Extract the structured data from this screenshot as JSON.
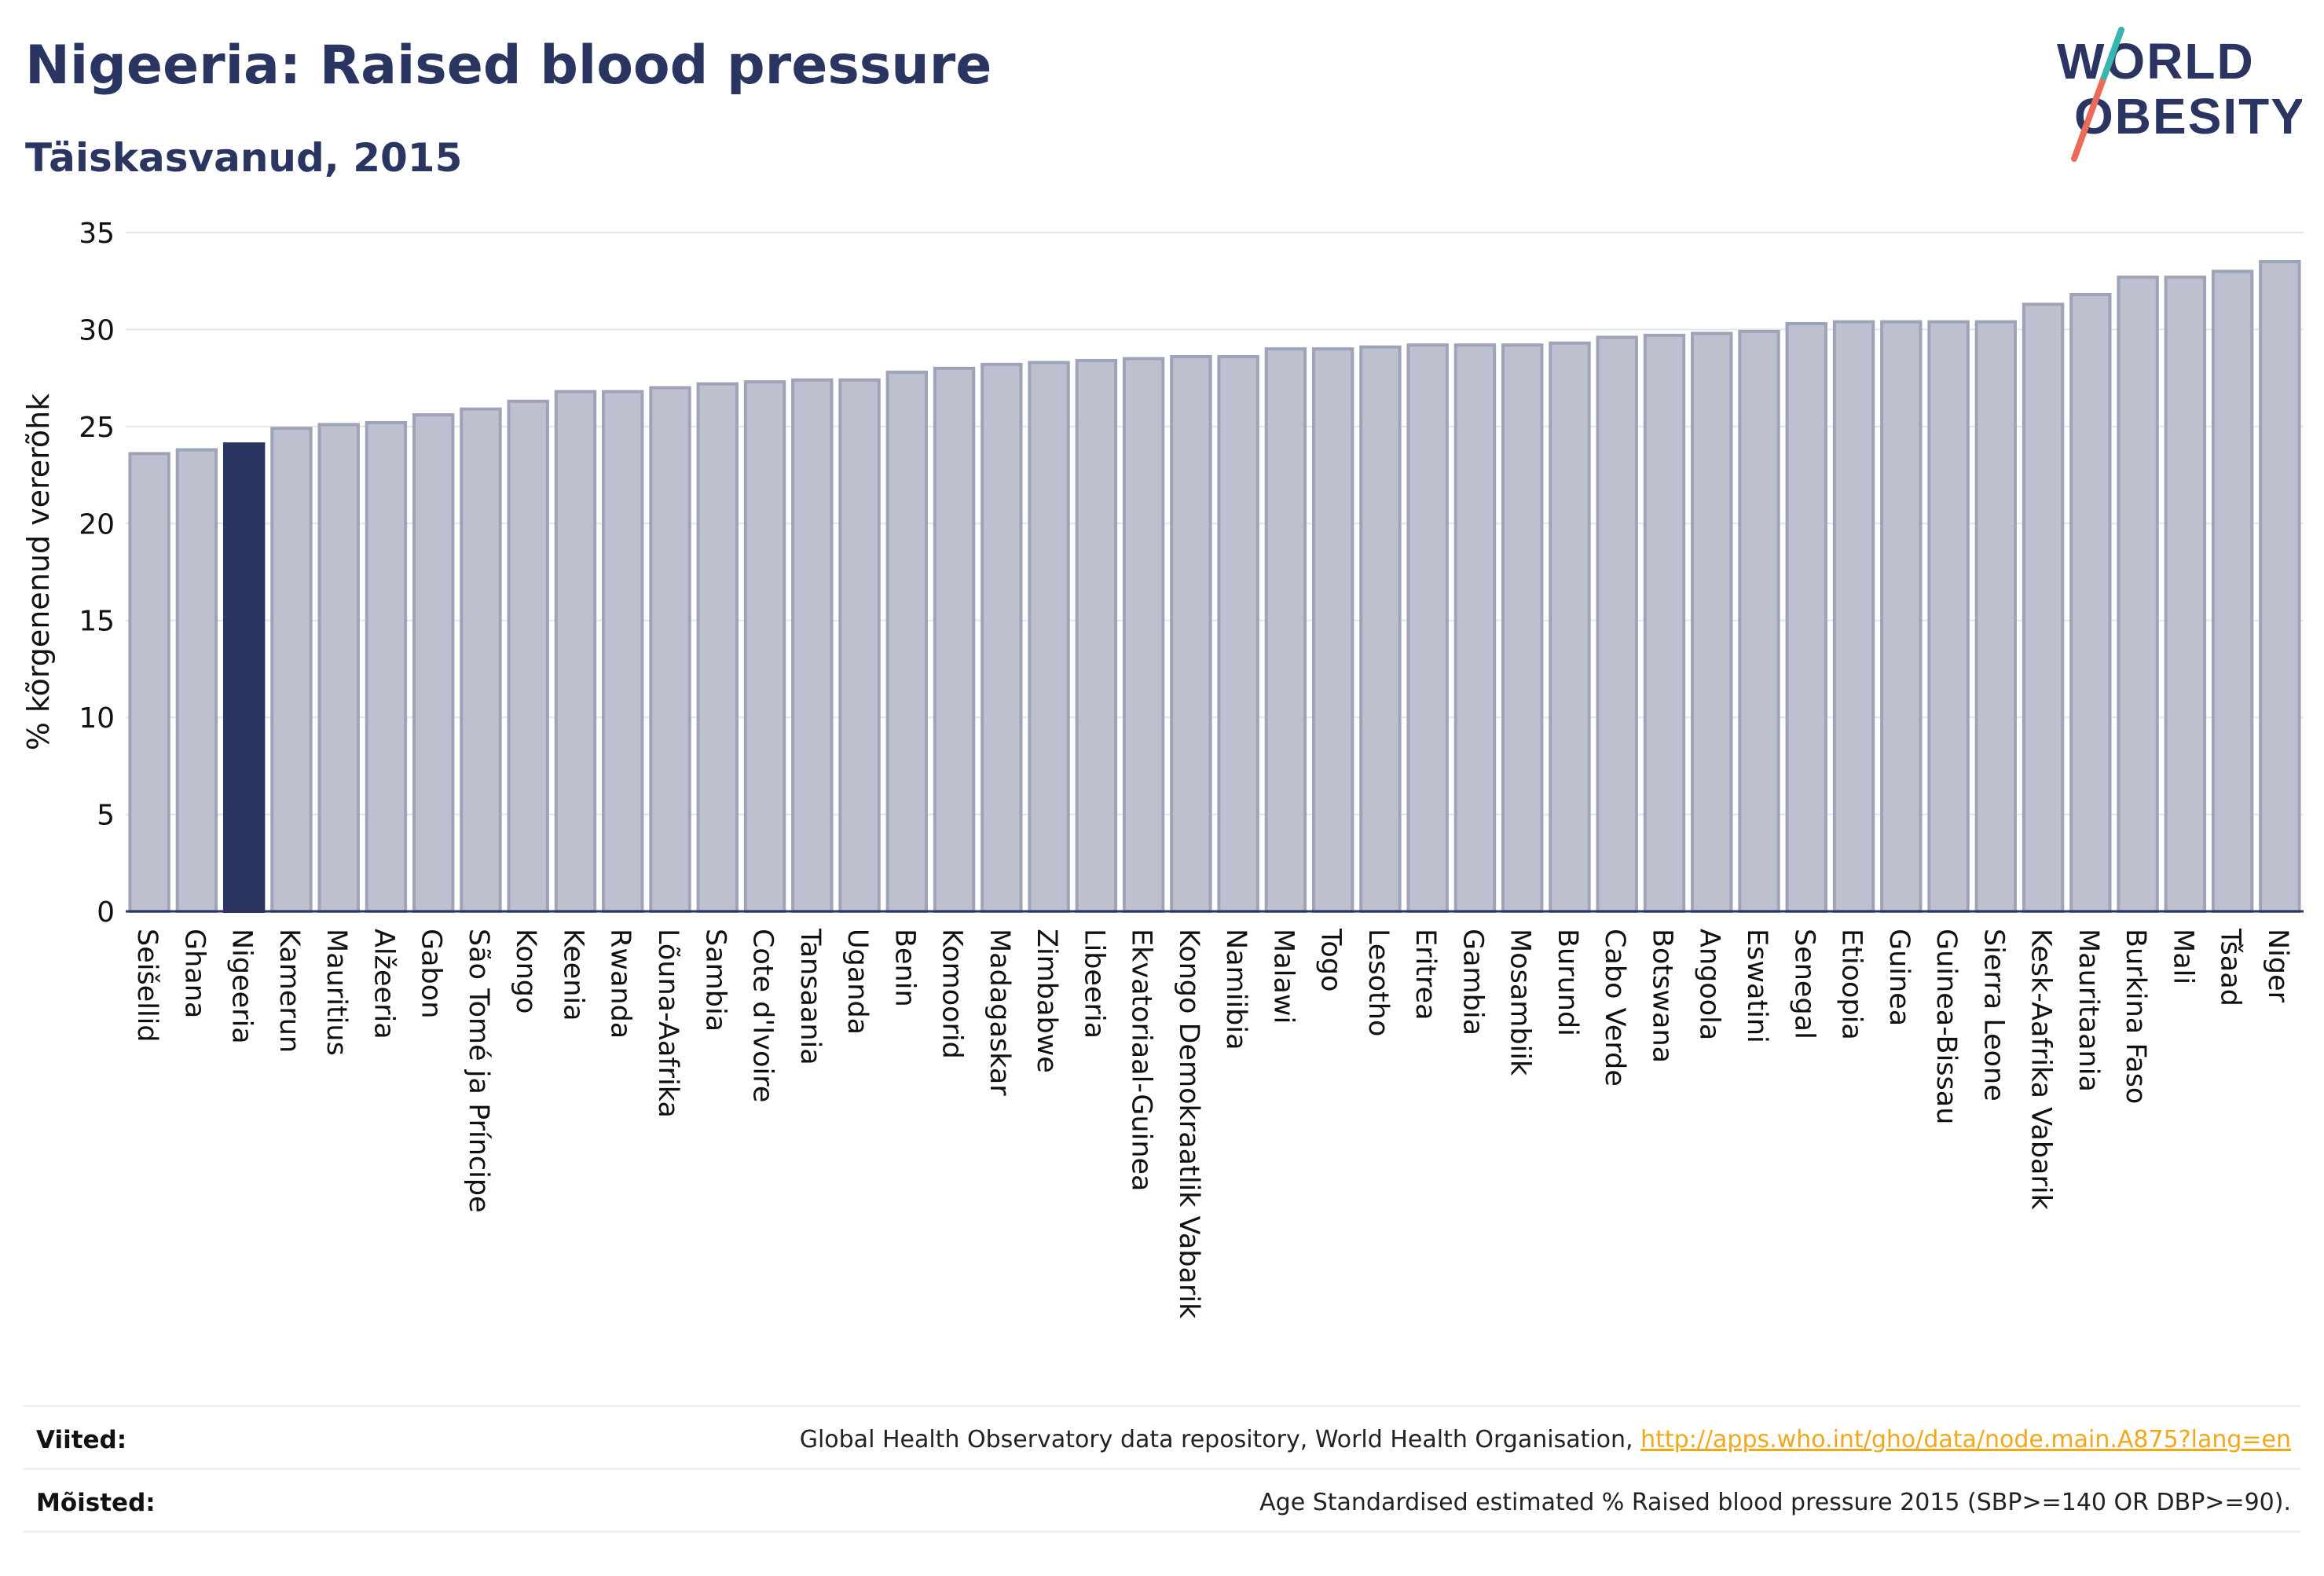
{
  "header": {
    "title": "Nigeeria: Raised blood pressure",
    "subtitle": "Täiskasvanud, 2015"
  },
  "logo": {
    "line1": "WORLD",
    "line2": "OBESITY",
    "icon": "slash-mark"
  },
  "colors": {
    "highlight": "#2b3561",
    "bar_fill": "#bdc1cf",
    "bar_stroke": "#9ea3b8",
    "grid": "#e3e5ee",
    "axis": "#2b3561"
  },
  "chart_data": {
    "type": "bar",
    "title": "Nigeeria: Raised blood pressure",
    "subtitle": "Täiskasvanud, 2015",
    "ylabel": "% kõrgenenud vererõhk",
    "xlabel": "",
    "ylim": [
      0,
      35
    ],
    "yticks": [
      0,
      5,
      10,
      15,
      20,
      25,
      30,
      35
    ],
    "grid": true,
    "highlight": "Nigeeria",
    "categories": [
      "Seišellid",
      "Ghana",
      "Nigeeria",
      "Kamerun",
      "Mauritius",
      "Alžeeria",
      "Gabon",
      "São Tomé ja Príncipe",
      "Kongo",
      "Keenia",
      "Rwanda",
      "Lõuna-Aafrika",
      "Sambia",
      "Cote d'Ivoire",
      "Tansaania",
      "Uganda",
      "Benin",
      "Komoorid",
      "Madagaskar",
      "Zimbabwe",
      "Libeeria",
      "Ekvatoriaal-Guinea",
      "Kongo Demokraatlik Vabarik",
      "Namiibia",
      "Malawi",
      "Togo",
      "Lesotho",
      "Eritrea",
      "Gambia",
      "Mosambiik",
      "Burundi",
      "Cabo Verde",
      "Botswana",
      "Angoola",
      "Eswatini",
      "Senegal",
      "Etioopia",
      "Guinea",
      "Guinea-Bissau",
      "Sierra Leone",
      "Kesk-Aafrika Vabarik",
      "Mauritaania",
      "Burkina Faso",
      "Mali",
      "Tšaad",
      "Niger"
    ],
    "values": [
      23.6,
      23.8,
      24.1,
      24.9,
      25.1,
      25.2,
      25.6,
      25.9,
      26.3,
      26.8,
      26.8,
      27.0,
      27.2,
      27.3,
      27.4,
      27.4,
      27.8,
      28.0,
      28.2,
      28.3,
      28.4,
      28.5,
      28.6,
      28.6,
      29.0,
      29.0,
      29.1,
      29.2,
      29.2,
      29.2,
      29.3,
      29.6,
      29.7,
      29.8,
      29.9,
      30.3,
      30.4,
      30.4,
      30.4,
      30.4,
      31.3,
      31.8,
      32.7,
      32.7,
      33.0,
      33.5
    ]
  },
  "footer": {
    "sources_label": "Viited:",
    "sources_text": "Global Health Observatory data repository, World Health Organisation,",
    "sources_link": "http://apps.who.int/gho/data/node.main.A875?lang=en",
    "definitions_label": "Mõisted:",
    "definitions_text": "Age Standardised estimated % Raised blood pressure 2015 (SBP>=140 OR DBP>=90)."
  }
}
